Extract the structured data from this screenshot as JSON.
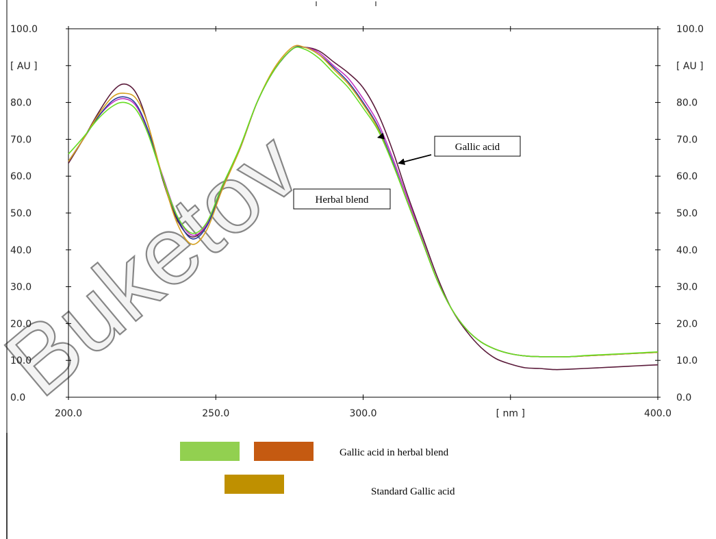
{
  "chart_data": {
    "type": "line",
    "xlabel": "",
    "ylabel": "",
    "x_unit_label": "[ nm ]",
    "y_unit_label": "[ AU ]",
    "xlim": [
      200,
      400
    ],
    "ylim": [
      0,
      100
    ],
    "x_tick_labels": [
      "200.0",
      "250.0",
      "300.0",
      "[ nm ]",
      "400.0"
    ],
    "y_tick_labels": [
      "100.0",
      "[ AU ]",
      "80.0",
      "70.0",
      "60.0",
      "50.0",
      "40.0",
      "30.0",
      "20.0",
      "10.0",
      "0.0"
    ],
    "grid": false,
    "x": [
      200,
      205,
      210,
      215,
      219,
      223,
      227,
      232,
      237,
      242,
      247,
      252,
      258,
      264,
      270,
      276,
      280,
      285,
      290,
      295,
      300,
      305,
      310,
      315,
      320,
      325,
      330,
      335,
      340,
      345,
      350,
      355,
      360,
      365,
      370,
      375,
      380,
      385,
      390,
      395,
      400
    ],
    "series": [
      {
        "color": "#5a1a3a",
        "values": [
          63.5,
          70,
          77,
          83,
          85,
          82.5,
          74,
          59,
          48,
          43.5,
          47,
          57,
          67,
          80,
          89,
          94.5,
          95,
          94,
          91,
          88,
          84,
          77,
          67,
          55,
          44,
          33,
          24,
          18,
          13.5,
          10.5,
          9,
          8,
          7.8,
          7.5,
          7.6,
          7.8,
          8,
          8.2,
          8.4,
          8.6,
          8.8
        ]
      },
      {
        "color": "#c030c0",
        "values": [
          64,
          70,
          76,
          80,
          81,
          79,
          72,
          60,
          49,
          44,
          47,
          56.5,
          67,
          80,
          89,
          94.5,
          95,
          93.5,
          90,
          86.5,
          81,
          74.5,
          65,
          54,
          43,
          32,
          24,
          18.5,
          15,
          13,
          11.8,
          11.2,
          11,
          11,
          11,
          11.2,
          11.4,
          11.6,
          11.8,
          12,
          12.2
        ]
      },
      {
        "color": "#2a3a9a",
        "values": [
          64,
          70,
          76,
          80.5,
          81.5,
          79.5,
          72.5,
          59.5,
          48.5,
          43,
          46.5,
          56.5,
          67,
          80,
          89,
          94.5,
          95,
          93,
          89.5,
          85.5,
          80,
          73.5,
          64,
          53,
          42.5,
          32,
          24,
          18.5,
          15,
          13,
          11.8,
          11.2,
          11,
          11,
          11,
          11.2,
          11.4,
          11.6,
          11.8,
          12,
          12.2
        ]
      },
      {
        "color": "#d4a020",
        "values": [
          64,
          70,
          76.5,
          81.5,
          82.5,
          81,
          74,
          59.5,
          47,
          41.5,
          45.5,
          56,
          67,
          80,
          89.5,
          95,
          95,
          93,
          89,
          85,
          79.5,
          73,
          63.5,
          53,
          42.5,
          32,
          24,
          18.5,
          15,
          13,
          11.8,
          11.2,
          11,
          11,
          11,
          11.2,
          11.4,
          11.6,
          11.8,
          12,
          12.2
        ]
      },
      {
        "color": "#66dd22",
        "values": [
          66,
          70.5,
          75.5,
          79,
          80,
          78,
          71.5,
          59.5,
          49,
          44.5,
          47.5,
          57,
          67.5,
          80,
          89,
          94.5,
          94.5,
          92,
          88,
          84,
          78.5,
          72.5,
          63.5,
          53,
          42.5,
          32,
          24,
          18.5,
          15,
          13,
          11.8,
          11.2,
          11,
          11,
          11,
          11.3,
          11.5,
          11.7,
          11.9,
          12.1,
          12.3
        ]
      }
    ],
    "annotations": [
      {
        "text": "Gallic acid",
        "x": 312,
        "y": 63.5
      },
      {
        "text": "Herbal blend",
        "x": 305,
        "y": 70.5
      }
    ]
  },
  "legend": {
    "entries": [
      {
        "label": "Gallic acid in herbal blend",
        "swatches": [
          "#92d050",
          "#c55a11"
        ]
      },
      {
        "label": "Standard Gallic acid",
        "swatches": [
          "#bf9000"
        ]
      }
    ]
  },
  "watermark": {
    "text": "Buketov"
  }
}
